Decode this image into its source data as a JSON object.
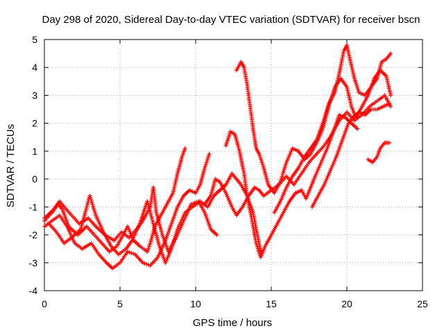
{
  "chart_data": {
    "type": "scatter",
    "title": "Day 298 of 2020, Sidereal Day-to-day VTEC variation (SDTVAR) for receiver bscn",
    "xlabel": "GPS time / hours",
    "ylabel": "SDTVAR / TECUs",
    "xlim": [
      0,
      25
    ],
    "ylim": [
      -4,
      5
    ],
    "xticks": [
      "0",
      "5",
      "10",
      "15",
      "20",
      "25"
    ],
    "yticks": [
      "-4",
      "-3",
      "-2",
      "-1",
      "0",
      "1",
      "2",
      "3",
      "4",
      "5"
    ],
    "grid": true,
    "marker": "plus",
    "color": "#ff0000",
    "traces": [
      [
        [
          0,
          -1.5
        ],
        [
          0.5,
          -1.2
        ],
        [
          0.9,
          -0.9
        ],
        [
          1.2,
          -1.1
        ],
        [
          1.6,
          -1.7
        ],
        [
          2.2,
          -2.0
        ],
        [
          2.8,
          -1.7
        ],
        [
          3.3,
          -2.0
        ],
        [
          3.8,
          -2.3
        ],
        [
          4.3,
          -2.6
        ],
        [
          4.8,
          -2.4
        ],
        [
          5.2,
          -2.0
        ],
        [
          5.5,
          -1.7
        ],
        [
          5.9,
          -2.2
        ],
        [
          6.3,
          -2.4
        ],
        [
          6.8,
          -2.6
        ],
        [
          7.0,
          -2.3
        ],
        [
          7.3,
          -1.7
        ],
        [
          7.7,
          -1.3
        ],
        [
          8.1,
          -0.9
        ],
        [
          8.5,
          -0.5
        ],
        [
          8.8,
          0.2
        ],
        [
          9.1,
          0.8
        ],
        [
          9.3,
          1.1
        ]
      ],
      [
        [
          0,
          -1.7
        ],
        [
          0.5,
          -1.5
        ],
        [
          1.0,
          -1.3
        ],
        [
          1.5,
          -1.7
        ],
        [
          2.0,
          -2.3
        ],
        [
          2.5,
          -2.5
        ],
        [
          3.1,
          -2.3
        ],
        [
          3.6,
          -2.7
        ],
        [
          4.1,
          -3.0
        ],
        [
          4.5,
          -3.2
        ],
        [
          5.0,
          -3.0
        ],
        [
          5.5,
          -2.6
        ],
        [
          6.0,
          -2.7
        ],
        [
          6.5,
          -3.0
        ],
        [
          7.0,
          -3.1
        ],
        [
          7.5,
          -2.8
        ],
        [
          8.0,
          -2.2
        ],
        [
          8.4,
          -1.6
        ],
        [
          8.8,
          -1.0
        ],
        [
          9.2,
          -0.6
        ],
        [
          9.6,
          -0.4
        ],
        [
          10.0,
          -0.5
        ],
        [
          10.3,
          -0.2
        ],
        [
          10.6,
          0.4
        ],
        [
          10.9,
          0.9
        ]
      ],
      [
        [
          0,
          -1.4
        ],
        [
          0.6,
          -1.1
        ],
        [
          1.0,
          -0.8
        ],
        [
          1.3,
          -1.0
        ],
        [
          1.8,
          -1.3
        ],
        [
          2.3,
          -1.6
        ],
        [
          2.9,
          -1.4
        ],
        [
          3.4,
          -1.7
        ],
        [
          4.0,
          -2.0
        ],
        [
          4.6,
          -2.2
        ],
        [
          5.1,
          -1.9
        ],
        [
          5.6,
          -2.1
        ],
        [
          6.1,
          -1.8
        ],
        [
          6.5,
          -1.5
        ],
        [
          7.0,
          -1.0
        ],
        [
          7.2,
          -0.3
        ],
        [
          7.4,
          -1.2
        ],
        [
          7.8,
          -2.0
        ],
        [
          8.2,
          -2.6
        ],
        [
          8.7,
          -2.1
        ],
        [
          9.2,
          -1.5
        ],
        [
          9.7,
          -0.9
        ],
        [
          10.2,
          -0.8
        ],
        [
          10.6,
          -1.2
        ],
        [
          11.0,
          -1.8
        ],
        [
          11.4,
          -2.0
        ]
      ],
      [
        [
          0.3,
          -1.6
        ],
        [
          0.8,
          -1.9
        ],
        [
          1.3,
          -2.3
        ],
        [
          1.8,
          -2.1
        ],
        [
          2.4,
          -1.8
        ],
        [
          3.0,
          -0.6
        ],
        [
          3.4,
          -1.3
        ],
        [
          3.9,
          -1.9
        ],
        [
          4.4,
          -2.4
        ],
        [
          4.9,
          -2.7
        ],
        [
          5.4,
          -2.5
        ],
        [
          5.8,
          -2.2
        ],
        [
          6.3,
          -1.6
        ],
        [
          6.8,
          -0.8
        ],
        [
          7.2,
          -1.6
        ],
        [
          7.6,
          -2.4
        ],
        [
          8.0,
          -3.0
        ],
        [
          8.4,
          -2.5
        ],
        [
          8.8,
          -1.8
        ],
        [
          9.3,
          -1.2
        ],
        [
          9.8,
          -1.0
        ],
        [
          10.3,
          -0.8
        ],
        [
          10.8,
          -1.0
        ],
        [
          11.2,
          -0.6
        ],
        [
          11.6,
          -0.4
        ],
        [
          12.0,
          -0.2
        ],
        [
          12.4,
          0.2
        ],
        [
          12.7,
          0.0
        ],
        [
          13.0,
          -0.2
        ],
        [
          13.4,
          -0.6
        ],
        [
          13.8,
          -1.2
        ],
        [
          14.0,
          -1.8
        ],
        [
          14.3,
          -2.6
        ]
      ],
      [
        [
          10.6,
          -0.9
        ],
        [
          11.0,
          -0.6
        ],
        [
          11.3,
          0.0
        ],
        [
          11.6,
          -0.1
        ],
        [
          12.0,
          -0.5
        ],
        [
          12.4,
          -1.0
        ],
        [
          12.7,
          -1.3
        ],
        [
          13.1,
          -1.0
        ],
        [
          13.5,
          -0.6
        ],
        [
          13.9,
          -0.3
        ],
        [
          14.2,
          -0.4
        ],
        [
          14.5,
          -0.6
        ],
        [
          15.0,
          -0.4
        ],
        [
          15.5,
          -0.2
        ],
        [
          16.0,
          0.1
        ],
        [
          16.5,
          -0.2
        ],
        [
          17.0,
          0.2
        ],
        [
          17.5,
          0.6
        ],
        [
          18.0,
          0.9
        ],
        [
          18.5,
          1.2
        ],
        [
          19.0,
          1.6
        ],
        [
          19.5,
          2.1
        ],
        [
          20.0,
          2.4
        ],
        [
          20.5,
          2.1
        ],
        [
          21.0,
          2.3
        ],
        [
          21.5,
          2.6
        ],
        [
          22.0,
          2.8
        ],
        [
          22.5,
          3.0
        ],
        [
          22.9,
          2.6
        ]
      ],
      [
        [
          12.0,
          1.2
        ],
        [
          12.3,
          1.7
        ],
        [
          12.6,
          1.6
        ],
        [
          12.9,
          1.0
        ],
        [
          13.2,
          0.2
        ],
        [
          13.4,
          -0.6
        ],
        [
          13.7,
          -1.4
        ],
        [
          14.0,
          -2.3
        ],
        [
          14.3,
          -2.8
        ],
        [
          14.6,
          -2.4
        ],
        [
          15.0,
          -2.0
        ],
        [
          15.4,
          -1.6
        ],
        [
          15.8,
          -1.2
        ],
        [
          16.2,
          -0.8
        ],
        [
          16.6,
          -0.5
        ],
        [
          17.0,
          -0.4
        ],
        [
          17.3,
          -0.7
        ],
        [
          17.6,
          -0.3
        ],
        [
          17.9,
          0.1
        ],
        [
          18.3,
          0.6
        ],
        [
          18.7,
          1.1
        ],
        [
          19.1,
          1.7
        ],
        [
          19.5,
          2.3
        ],
        [
          19.9,
          2.2
        ],
        [
          20.3,
          2.0
        ],
        [
          20.7,
          1.8
        ]
      ],
      [
        [
          12.7,
          3.9
        ],
        [
          13.0,
          4.2
        ],
        [
          13.2,
          4.0
        ],
        [
          13.4,
          3.4
        ],
        [
          13.6,
          2.6
        ],
        [
          13.8,
          1.8
        ],
        [
          14.0,
          1.1
        ],
        [
          14.2,
          0.9
        ],
        [
          14.5,
          0.4
        ],
        [
          14.8,
          -0.2
        ],
        [
          15.2,
          -0.5
        ],
        [
          15.6,
          -0.1
        ],
        [
          16.0,
          0.6
        ],
        [
          16.4,
          1.1
        ],
        [
          16.8,
          1.0
        ],
        [
          17.2,
          0.7
        ],
        [
          17.6,
          0.9
        ],
        [
          18.0,
          1.3
        ],
        [
          18.4,
          1.8
        ],
        [
          18.8,
          2.6
        ],
        [
          19.2,
          3.3
        ],
        [
          19.6,
          3.6
        ],
        [
          20.0,
          3.3
        ],
        [
          20.3,
          2.6
        ],
        [
          20.6,
          2.2
        ],
        [
          21.0,
          2.6
        ],
        [
          21.4,
          3.0
        ],
        [
          21.8,
          3.6
        ],
        [
          22.2,
          3.9
        ],
        [
          22.6,
          3.7
        ],
        [
          22.9,
          3.0
        ]
      ],
      [
        [
          15.2,
          -1.2
        ],
        [
          15.6,
          -0.8
        ],
        [
          16.0,
          -0.3
        ],
        [
          16.4,
          0.1
        ],
        [
          16.8,
          0.4
        ],
        [
          17.2,
          0.8
        ],
        [
          17.6,
          1.1
        ],
        [
          18.0,
          1.4
        ],
        [
          18.4,
          2.0
        ],
        [
          18.8,
          2.7
        ],
        [
          19.2,
          3.1
        ],
        [
          19.5,
          3.8
        ],
        [
          19.8,
          4.6
        ],
        [
          20.0,
          4.8
        ],
        [
          20.2,
          4.3
        ],
        [
          20.5,
          3.6
        ],
        [
          20.8,
          3.1
        ],
        [
          21.2,
          3.0
        ],
        [
          21.6,
          3.3
        ],
        [
          22.0,
          3.6
        ],
        [
          22.3,
          4.2
        ],
        [
          22.6,
          4.3
        ],
        [
          22.9,
          4.5
        ]
      ],
      [
        [
          17.7,
          -1.0
        ],
        [
          18.1,
          -0.6
        ],
        [
          18.5,
          -0.2
        ],
        [
          18.9,
          0.3
        ],
        [
          19.3,
          0.8
        ],
        [
          19.7,
          1.4
        ],
        [
          20.1,
          2.0
        ],
        [
          20.4,
          2.2
        ],
        [
          20.8,
          2.4
        ],
        [
          21.2,
          2.3
        ],
        [
          21.6,
          2.5
        ],
        [
          22.0,
          2.5
        ],
        [
          22.4,
          2.6
        ],
        [
          22.8,
          2.7
        ]
      ],
      [
        [
          21.4,
          0.7
        ],
        [
          21.7,
          0.6
        ],
        [
          22.0,
          0.8
        ],
        [
          22.2,
          1.1
        ],
        [
          22.5,
          1.3
        ],
        [
          22.8,
          1.3
        ]
      ]
    ]
  }
}
